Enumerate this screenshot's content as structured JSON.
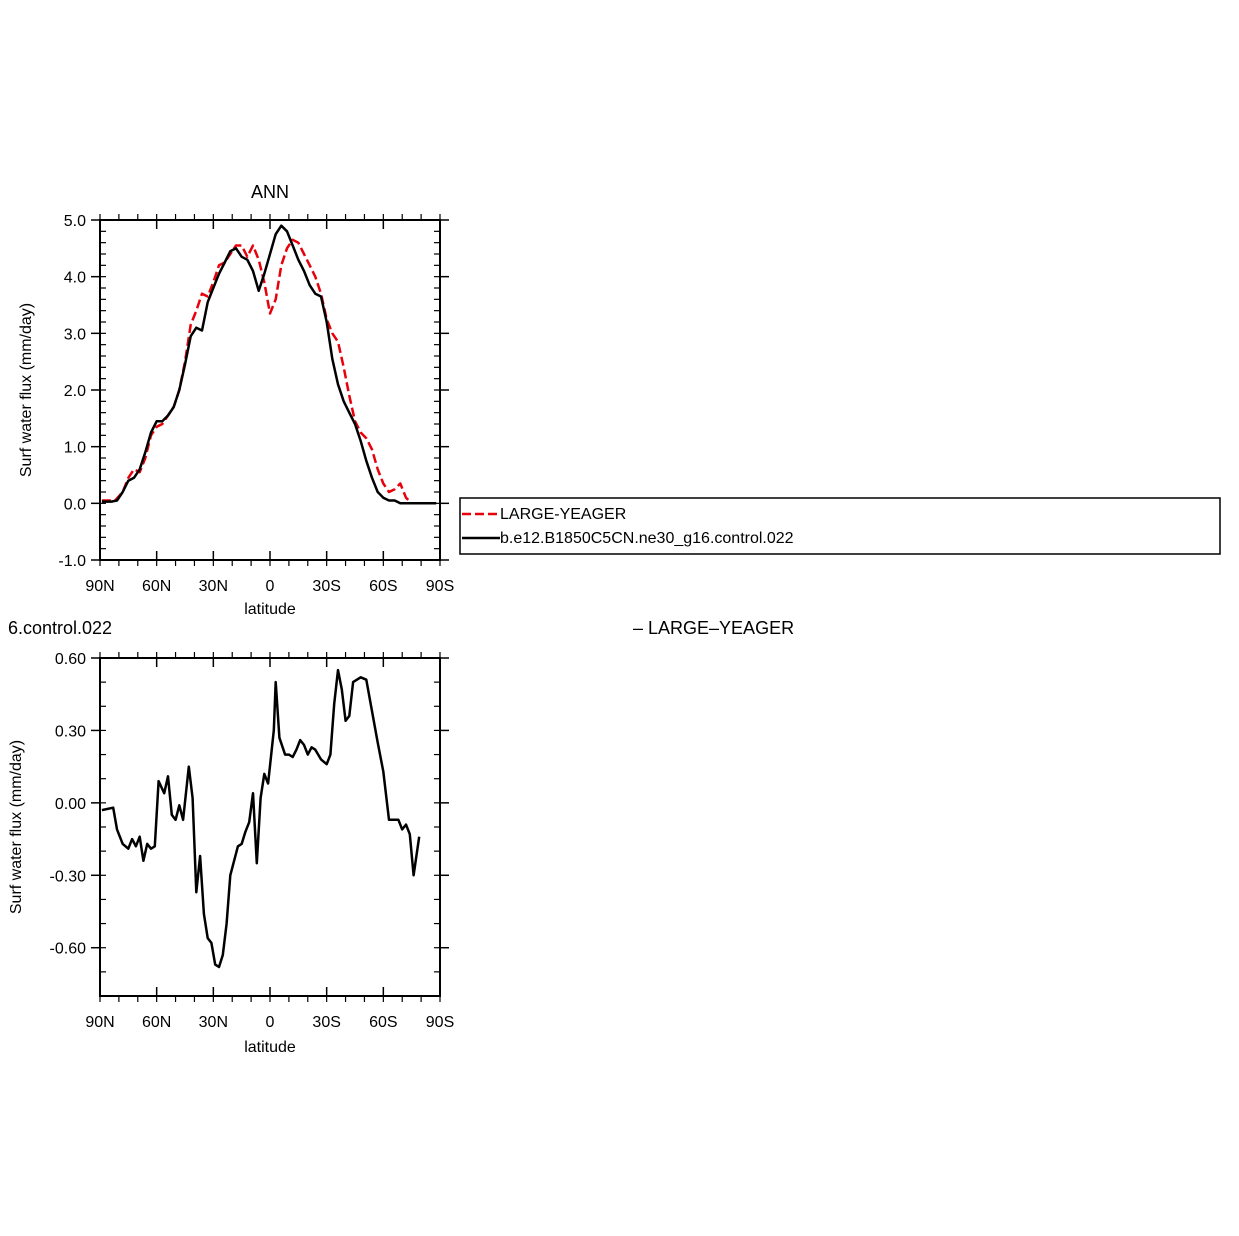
{
  "chart_data": [
    {
      "type": "line",
      "title": "ANN",
      "xlabel": "latitude",
      "ylabel": "Surf water flux (mm/day)",
      "xlim": [
        90,
        -90
      ],
      "ylim": [
        -1.0,
        5.0
      ],
      "x_ticks": [
        {
          "value": 90,
          "label": "90N"
        },
        {
          "value": 60,
          "label": "60N"
        },
        {
          "value": 30,
          "label": "30N"
        },
        {
          "value": 0,
          "label": "0"
        },
        {
          "value": -30,
          "label": "30S"
        },
        {
          "value": -60,
          "label": "60S"
        },
        {
          "value": -90,
          "label": "90S"
        }
      ],
      "y_ticks": [
        {
          "value": 5.0,
          "label": "5.0"
        },
        {
          "value": 4.0,
          "label": "4.0"
        },
        {
          "value": 3.0,
          "label": "3.0"
        },
        {
          "value": 2.0,
          "label": "2.0"
        },
        {
          "value": 1.0,
          "label": "1.0"
        },
        {
          "value": 0.0,
          "label": "0.0"
        },
        {
          "value": -1.0,
          "label": "-1.0"
        }
      ],
      "legend_position": "right",
      "series": [
        {
          "name": "LARGE-YEAGER",
          "color": "#e8000b",
          "dash": "dashed",
          "x": [
            89,
            82,
            78,
            75,
            72,
            69,
            66,
            63,
            60,
            57,
            54,
            51,
            48,
            45,
            42,
            39,
            36,
            33,
            30,
            27,
            24,
            21,
            18,
            15,
            12,
            9,
            6,
            3,
            0,
            -3,
            -6,
            -9,
            -12,
            -15,
            -18,
            -21,
            -24,
            -27,
            -30,
            -33,
            -36,
            -39,
            -42,
            -45,
            -48,
            -51,
            -54,
            -57,
            -60,
            -63,
            -66,
            -69,
            -72,
            -75,
            -78,
            -80
          ],
          "values": [
            0.05,
            0.05,
            0.2,
            0.45,
            0.6,
            0.55,
            0.8,
            1.2,
            1.35,
            1.4,
            1.55,
            1.7,
            2.0,
            2.5,
            3.15,
            3.4,
            3.7,
            3.65,
            3.9,
            4.2,
            4.25,
            4.4,
            4.55,
            4.55,
            4.35,
            4.55,
            4.3,
            3.9,
            3.35,
            3.6,
            4.2,
            4.5,
            4.65,
            4.6,
            4.4,
            4.2,
            4.0,
            3.7,
            3.25,
            3.0,
            2.85,
            2.4,
            1.9,
            1.45,
            1.25,
            1.15,
            0.95,
            0.6,
            0.35,
            0.2,
            0.25,
            0.35,
            0.1,
            0.0,
            0.0,
            0.0
          ]
        },
        {
          "name": "b.e12.B1850C5CN.ne30_g16.control.022",
          "color": "#000000",
          "dash": "solid",
          "x": [
            89,
            84,
            81,
            78,
            75,
            72,
            69,
            66,
            63,
            60,
            57,
            54,
            51,
            48,
            45,
            42,
            39,
            36,
            33,
            30,
            27,
            24,
            21,
            18,
            15,
            12,
            9,
            6,
            3,
            0,
            -3,
            -6,
            -9,
            -12,
            -15,
            -18,
            -21,
            -24,
            -27,
            -30,
            -33,
            -36,
            -39,
            -42,
            -45,
            -48,
            -51,
            -54,
            -57,
            -60,
            -63,
            -66,
            -69,
            -72,
            -75,
            -78,
            -81,
            -84,
            -88
          ],
          "values": [
            0.03,
            0.03,
            0.05,
            0.2,
            0.4,
            0.45,
            0.6,
            0.9,
            1.25,
            1.45,
            1.45,
            1.55,
            1.7,
            2.0,
            2.45,
            2.95,
            3.1,
            3.05,
            3.55,
            3.8,
            4.05,
            4.25,
            4.45,
            4.5,
            4.35,
            4.3,
            4.1,
            3.75,
            4.05,
            4.4,
            4.75,
            4.9,
            4.8,
            4.55,
            4.3,
            4.1,
            3.85,
            3.7,
            3.65,
            3.2,
            2.55,
            2.1,
            1.8,
            1.6,
            1.4,
            1.1,
            0.75,
            0.45,
            0.2,
            0.1,
            0.05,
            0.05,
            0.0,
            0.0,
            0.0,
            0.0,
            0.0,
            0.0,
            0.0
          ]
        }
      ]
    },
    {
      "type": "line",
      "title": "6.control.022",
      "title_right": "– LARGE–YEAGER",
      "xlabel": "latitude",
      "ylabel": "Surf water flux (mm/day)",
      "xlim": [
        90,
        -90
      ],
      "ylim": [
        -0.8,
        0.6
      ],
      "x_ticks": [
        {
          "value": 90,
          "label": "90N"
        },
        {
          "value": 60,
          "label": "60N"
        },
        {
          "value": 30,
          "label": "30N"
        },
        {
          "value": 0,
          "label": "0"
        },
        {
          "value": -30,
          "label": "30S"
        },
        {
          "value": -60,
          "label": "60S"
        },
        {
          "value": -90,
          "label": "90S"
        }
      ],
      "y_ticks": [
        {
          "value": 0.6,
          "label": "0.60"
        },
        {
          "value": 0.3,
          "label": "0.30"
        },
        {
          "value": 0.0,
          "label": "0.00"
        },
        {
          "value": -0.3,
          "label": "-0.30"
        },
        {
          "value": -0.6,
          "label": "-0.60"
        }
      ],
      "series": [
        {
          "color": "#000000",
          "x": [
            89,
            83,
            81,
            78,
            75,
            73,
            71,
            69,
            67,
            65,
            63,
            61,
            59,
            56,
            54,
            52,
            50,
            48,
            46,
            43,
            41,
            39,
            37,
            35,
            33,
            31,
            29,
            27,
            25,
            23,
            21,
            17,
            15,
            13,
            11,
            9,
            7,
            5,
            3,
            1,
            -2,
            -3,
            -5,
            -8,
            -10,
            -12,
            -14,
            -16,
            -18,
            -20,
            -22,
            -24,
            -27,
            -30,
            -32,
            -34,
            -36,
            -38,
            -40,
            -42,
            -44,
            -48,
            -51,
            -54,
            -57,
            -60,
            -63,
            -65,
            -68,
            -70,
            -72,
            -74,
            -76,
            -79
          ],
          "values": [
            -0.03,
            -0.02,
            -0.11,
            -0.17,
            -0.19,
            -0.15,
            -0.18,
            -0.14,
            -0.24,
            -0.17,
            -0.19,
            -0.18,
            0.09,
            0.04,
            0.11,
            -0.05,
            -0.07,
            -0.01,
            -0.07,
            0.15,
            0.02,
            -0.37,
            -0.22,
            -0.46,
            -0.56,
            -0.58,
            -0.67,
            -0.68,
            -0.63,
            -0.5,
            -0.3,
            -0.18,
            -0.17,
            -0.12,
            -0.08,
            0.04,
            -0.25,
            0.02,
            0.12,
            0.08,
            0.3,
            0.5,
            0.27,
            0.2,
            0.2,
            0.19,
            0.22,
            0.26,
            0.24,
            0.2,
            0.23,
            0.22,
            0.18,
            0.16,
            0.2,
            0.41,
            0.55,
            0.47,
            0.34,
            0.36,
            0.5,
            0.52,
            0.51,
            0.38,
            0.25,
            0.13,
            -0.07,
            -0.07,
            -0.07,
            -0.11,
            -0.09,
            -0.13,
            -0.3,
            -0.14
          ]
        }
      ]
    }
  ]
}
